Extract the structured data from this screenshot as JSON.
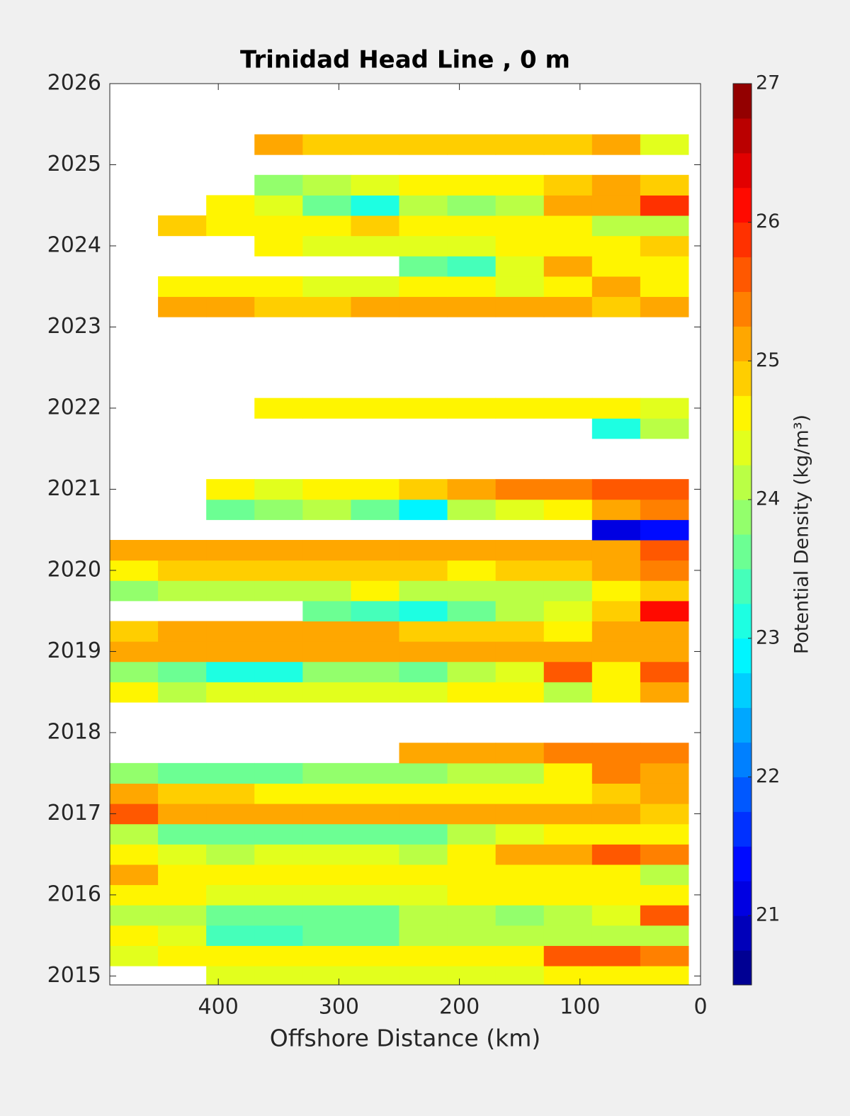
{
  "chart_data": {
    "type": "contourf",
    "title": "Trinidad Head Line , 0 m",
    "xlabel": "Offshore Distance (km)",
    "colorbar_label": "Potential Density (kg/m³)",
    "colormap": "jet",
    "xlim": [
      490,
      0
    ],
    "xticks": [
      400,
      300,
      200,
      100,
      0
    ],
    "ylim": [
      2014.89,
      2026
    ],
    "yticks": [
      2015,
      2016,
      2017,
      2018,
      2019,
      2020,
      2021,
      2022,
      2023,
      2024,
      2025,
      2026
    ],
    "clim": [
      20.5,
      27
    ],
    "cticks": [
      21,
      22,
      23,
      24,
      25,
      26,
      27
    ],
    "x": [
      470,
      430,
      390,
      350,
      310,
      270,
      230,
      190,
      150,
      110,
      70,
      30
    ],
    "y": [
      2015.0,
      2015.25,
      2015.5,
      2015.75,
      2016.0,
      2016.25,
      2016.5,
      2016.75,
      2017.0,
      2017.25,
      2017.5,
      2017.75,
      2018.5,
      2018.75,
      2019.0,
      2019.25,
      2019.5,
      2019.75,
      2020.0,
      2020.25,
      2020.5,
      2020.75,
      2021.0,
      2021.75,
      2022.0,
      2023.25,
      2023.5,
      2023.75,
      2024.0,
      2024.25,
      2024.5,
      2024.75,
      2025.25
    ],
    "z": [
      [
        null,
        null,
        24.3,
        24.3,
        24.3,
        24.3,
        24.3,
        24.3,
        24.3,
        24.5,
        24.5,
        24.5
      ],
      [
        24.3,
        24.5,
        24.5,
        24.5,
        24.5,
        24.5,
        24.5,
        24.5,
        24.7,
        25.5,
        25.5,
        25.3
      ],
      [
        24.5,
        24.3,
        23.3,
        23.3,
        23.5,
        23.5,
        24,
        24,
        24,
        24,
        24,
        24.2
      ],
      [
        24,
        24,
        23.7,
        23.5,
        23.7,
        23.7,
        24,
        24,
        23.8,
        24,
        24.3,
        25.7
      ],
      [
        24.5,
        24.5,
        24.3,
        24.3,
        24.3,
        24.3,
        24.3,
        24.5,
        24.5,
        24.5,
        24.5,
        24.5
      ],
      [
        25,
        24.7,
        24.5,
        24.5,
        24.7,
        24.7,
        24.5,
        24.5,
        24.5,
        24.5,
        24.5,
        24.2
      ],
      [
        24.5,
        24.3,
        24.2,
        24.3,
        24.3,
        24.3,
        24.2,
        24.5,
        25,
        25.2,
        25.5,
        25.3
      ],
      [
        24,
        23.5,
        23.5,
        23.7,
        23.7,
        23.7,
        23.5,
        24,
        24.3,
        24.5,
        24.7,
        24.5
      ],
      [
        25.5,
        25.2,
        25.2,
        25.2,
        25.2,
        25.2,
        25.2,
        25.2,
        25,
        25,
        25,
        24.8
      ],
      [
        25,
        24.8,
        24.8,
        24.5,
        24.5,
        24.5,
        24.5,
        24.7,
        24.7,
        24.7,
        24.8,
        25
      ],
      [
        23.8,
        23.5,
        23.5,
        23.5,
        23.8,
        23.8,
        23.8,
        24,
        24,
        24.5,
        25.3,
        25
      ],
      [
        null,
        null,
        null,
        null,
        null,
        null,
        25,
        25,
        25,
        25.3,
        25.3,
        25.3
      ],
      [
        24.5,
        24.2,
        24.3,
        24.3,
        24.3,
        24.3,
        24.3,
        24.5,
        24.5,
        24,
        24.7,
        25.2
      ],
      [
        23.8,
        23.5,
        23.2,
        23.2,
        23.8,
        23.8,
        23.7,
        24,
        24.3,
        25.5,
        24.7,
        25.5
      ],
      [
        25,
        25.2,
        25.2,
        25.2,
        25,
        25,
        25,
        25,
        25,
        25,
        25,
        25.2
      ],
      [
        24.8,
        25,
        25,
        25,
        25,
        25,
        24.8,
        24.8,
        24.8,
        24.5,
        25,
        25.2
      ],
      [
        null,
        null,
        null,
        null,
        23.7,
        23.3,
        23,
        23.5,
        24,
        24.3,
        24.8,
        26
      ],
      [
        23.8,
        24,
        24,
        24,
        24.2,
        24.5,
        24.2,
        24,
        24,
        24.2,
        24.5,
        24.8
      ],
      [
        24.5,
        24.8,
        24.8,
        24.8,
        24.8,
        24.8,
        24.8,
        24.7,
        24.8,
        24.8,
        25,
        25.3
      ],
      [
        25,
        25,
        25,
        25,
        25,
        25,
        25,
        25,
        25,
        25,
        25.2,
        25.7
      ],
      [
        null,
        null,
        null,
        null,
        null,
        null,
        null,
        null,
        null,
        null,
        21,
        21.3
      ],
      [
        null,
        null,
        23.5,
        23.8,
        24,
        23.5,
        22.8,
        24,
        24.3,
        24.5,
        25,
        25.3
      ],
      [
        null,
        null,
        24.5,
        24.3,
        24.5,
        24.7,
        24.8,
        25.2,
        25.3,
        25.3,
        25.5,
        25.7
      ],
      [
        null,
        null,
        null,
        null,
        null,
        null,
        null,
        null,
        null,
        null,
        23.2,
        24
      ],
      [
        null,
        null,
        null,
        24.6,
        24.6,
        24.5,
        24.5,
        24.5,
        24.5,
        24.5,
        24.5,
        24.3
      ],
      [
        null,
        25,
        25,
        24.8,
        24.8,
        25,
        25,
        25.2,
        25,
        25.2,
        24.8,
        25
      ],
      [
        null,
        24.7,
        24.5,
        24.5,
        24.3,
        24.3,
        24.5,
        24.5,
        24.3,
        24.7,
        25,
        24.7
      ],
      [
        null,
        null,
        null,
        null,
        null,
        null,
        23.5,
        23.3,
        24.3,
        25,
        24.5,
        24.7
      ],
      [
        null,
        null,
        null,
        24.5,
        24.3,
        24.3,
        24.3,
        24.3,
        24.5,
        24.5,
        24.7,
        24.8
      ],
      [
        null,
        24.8,
        24.5,
        24.5,
        24.7,
        24.8,
        24.7,
        24.7,
        24.5,
        24.5,
        24.2,
        24
      ],
      [
        null,
        null,
        24.5,
        24.3,
        23.5,
        23,
        24,
        23.8,
        24,
        25.2,
        25.2,
        25.8
      ],
      [
        null,
        null,
        null,
        23.8,
        24,
        24.3,
        24.5,
        24.5,
        24.5,
        24.8,
        25.2,
        24.8
      ],
      [
        null,
        null,
        null,
        25,
        24.8,
        24.8,
        24.8,
        24.8,
        24.8,
        24.8,
        25,
        24.3
      ]
    ]
  }
}
